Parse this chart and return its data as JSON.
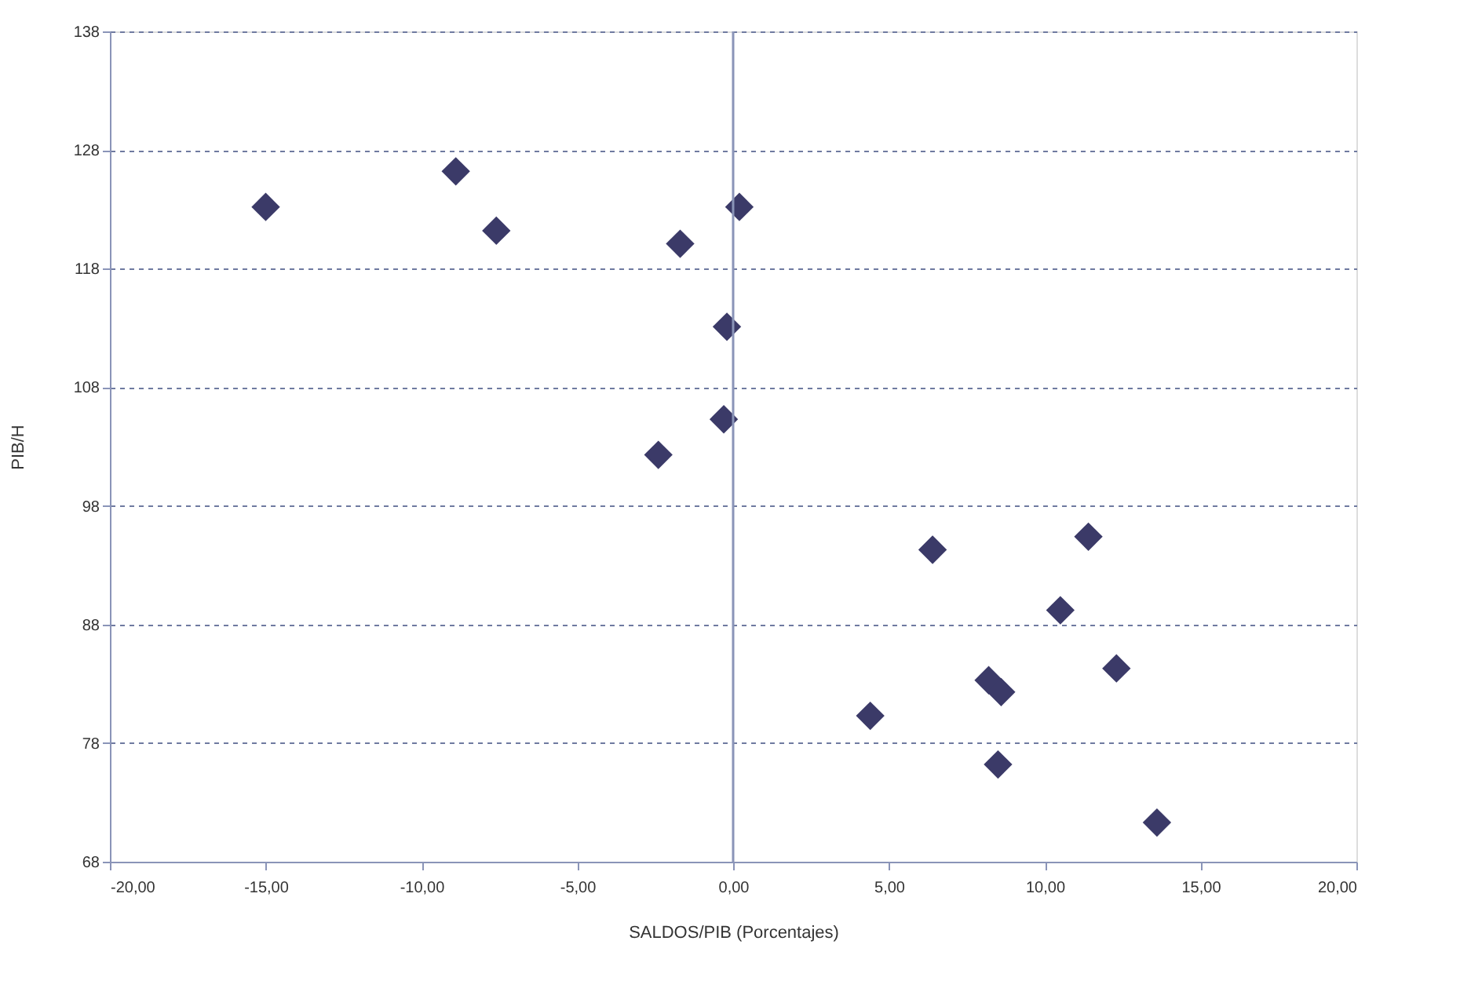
{
  "chart_data": {
    "type": "scatter",
    "xlabel": "SALDOS/PIB (Porcentajes)",
    "ylabel": "PIB/H",
    "x": [
      -15,
      -8.9,
      -7.6,
      -1.7,
      0.2,
      -0.2,
      -0.3,
      -2.4,
      6.4,
      11.4,
      10.5,
      12.3,
      8.2,
      8.6,
      4.4,
      8.5,
      13.6
    ],
    "series": [
      {
        "color": "#3b3a68",
        "values": [
          123.2,
          126.2,
          121.2,
          120.1,
          123.2,
          113.1,
          105.3,
          102.3,
          94.3,
          95.4,
          89.2,
          84.3,
          83.3,
          82.3,
          80.3,
          76.2,
          71.3
        ]
      }
    ],
    "marker": "diamond",
    "xlim": [
      -20,
      20
    ],
    "ylim": [
      68,
      138
    ],
    "xticks": [
      {
        "value": -20,
        "label": "-20,00"
      },
      {
        "value": -15,
        "label": "-15,00"
      },
      {
        "value": -10,
        "label": "-10,00"
      },
      {
        "value": -5,
        "label": "-5,00"
      },
      {
        "value": 0,
        "label": "0,00"
      },
      {
        "value": 5,
        "label": "5,00"
      },
      {
        "value": 10,
        "label": "10,00"
      },
      {
        "value": 15,
        "label": "15,00"
      },
      {
        "value": 20,
        "label": "20,00"
      }
    ],
    "yticks": [
      68,
      78,
      88,
      98,
      108,
      118,
      128,
      138
    ],
    "grid": "y",
    "ref_lines": [
      {
        "axis": "x",
        "value": 0,
        "color": "#8a94b8"
      }
    ]
  }
}
